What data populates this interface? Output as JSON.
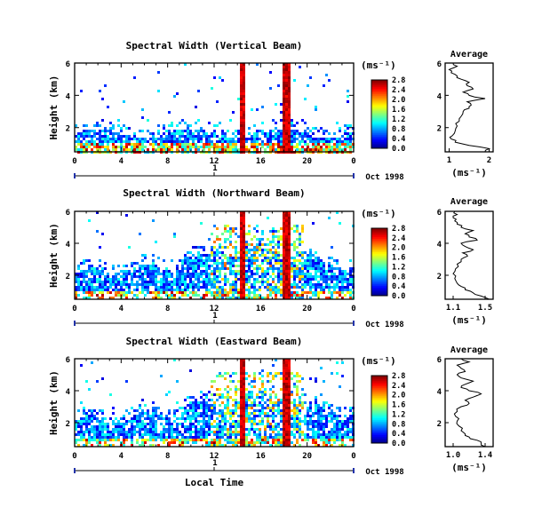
{
  "figure": {
    "date_label": "Oct 1998",
    "day_marker": "1",
    "xlabel": "Local Time",
    "ylabel": "Height (km)",
    "unit_label": "(ms⁻¹)",
    "average_title": "Average"
  },
  "chart_data": [
    {
      "type": "heatmap",
      "title": "Spectral Width (Vertical Beam)",
      "xlabel": "Local Time",
      "ylabel": "Height (km)",
      "x_ticks": [
        "0",
        "4",
        "8",
        "12",
        "16",
        "20",
        "0"
      ],
      "y_ticks": [
        "2",
        "4",
        "6"
      ],
      "colorbar_ticks": [
        "0.0",
        "0.4",
        "0.8",
        "1.2",
        "1.6",
        "2.0",
        "2.4",
        "2.8"
      ],
      "colorbar_unit": "(ms⁻¹)",
      "xlim_hours": [
        0,
        24
      ],
      "ylim_km": [
        0.5,
        6
      ],
      "vmax": 2.8,
      "date": "Oct 1998",
      "profile": {
        "title": "Average",
        "xlabel": "(ms⁻¹)",
        "x_ticks": [
          "1",
          "2"
        ],
        "y_ticks": [
          "2",
          "4",
          "6"
        ],
        "xlim": [
          0.9,
          2.1
        ],
        "heights_km": [
          0.5,
          0.7,
          0.9,
          1.1,
          1.3,
          1.5,
          1.8,
          2.1,
          2.4,
          2.7,
          3.0,
          3.2,
          3.4,
          3.6,
          3.8,
          4.0,
          4.2,
          4.4,
          4.6,
          4.8,
          5.0,
          5.2,
          5.4,
          5.6,
          5.8,
          6.0
        ],
        "values": [
          1.9,
          2.0,
          1.5,
          1.15,
          1.05,
          1.08,
          1.15,
          1.2,
          1.25,
          1.3,
          1.35,
          1.5,
          1.55,
          1.45,
          1.9,
          1.5,
          1.35,
          1.6,
          1.45,
          1.5,
          1.3,
          1.2,
          1.05,
          1.0,
          1.2,
          1.1
        ]
      }
    },
    {
      "type": "heatmap",
      "title": "Spectral Width (Northward Beam)",
      "xlabel": "Local Time",
      "ylabel": "Height (km)",
      "x_ticks": [
        "0",
        "4",
        "8",
        "12",
        "16",
        "20",
        "0"
      ],
      "y_ticks": [
        "2",
        "4",
        "6"
      ],
      "colorbar_ticks": [
        "0.0",
        "0.4",
        "0.8",
        "1.2",
        "1.6",
        "2.0",
        "2.4",
        "2.8"
      ],
      "colorbar_unit": "(ms⁻¹)",
      "xlim_hours": [
        0,
        24
      ],
      "ylim_km": [
        0.5,
        6
      ],
      "vmax": 2.8,
      "date": "Oct 1998",
      "profile": {
        "title": "Average",
        "xlabel": "(ms⁻¹)",
        "x_ticks": [
          "1.1",
          "1.5"
        ],
        "y_ticks": [
          "2",
          "4",
          "6"
        ],
        "xlim": [
          1.0,
          1.6
        ],
        "heights_km": [
          0.5,
          0.7,
          0.9,
          1.1,
          1.3,
          1.5,
          1.8,
          2.1,
          2.4,
          2.7,
          3.0,
          3.2,
          3.4,
          3.6,
          3.8,
          4.0,
          4.2,
          4.4,
          4.6,
          4.8,
          5.0,
          5.2,
          5.4,
          5.6,
          5.8,
          6.0
        ],
        "values": [
          1.55,
          1.45,
          1.35,
          1.25,
          1.2,
          1.15,
          1.12,
          1.1,
          1.13,
          1.15,
          1.2,
          1.28,
          1.22,
          1.35,
          1.25,
          1.2,
          1.4,
          1.3,
          1.25,
          1.35,
          1.2,
          1.15,
          1.12,
          1.1,
          1.15,
          1.12
        ]
      }
    },
    {
      "type": "heatmap",
      "title": "Spectral Width (Eastward Beam)",
      "xlabel": "Local Time",
      "ylabel": "Height (km)",
      "x_ticks": [
        "0",
        "4",
        "8",
        "12",
        "16",
        "20",
        "0"
      ],
      "y_ticks": [
        "2",
        "4",
        "6"
      ],
      "colorbar_ticks": [
        "0.0",
        "0.4",
        "0.8",
        "1.2",
        "1.6",
        "2.0",
        "2.4",
        "2.8"
      ],
      "colorbar_unit": "(ms⁻¹)",
      "xlim_hours": [
        0,
        24
      ],
      "ylim_km": [
        0.5,
        6
      ],
      "vmax": 2.8,
      "date": "Oct 1998",
      "profile": {
        "title": "Average",
        "xlabel": "(ms⁻¹)",
        "x_ticks": [
          "1.0",
          "1.4"
        ],
        "y_ticks": [
          "2",
          "4",
          "6"
        ],
        "xlim": [
          0.9,
          1.5
        ],
        "heights_km": [
          0.5,
          0.7,
          0.9,
          1.1,
          1.3,
          1.5,
          1.8,
          2.1,
          2.4,
          2.7,
          3.0,
          3.2,
          3.4,
          3.6,
          3.8,
          4.0,
          4.2,
          4.4,
          4.6,
          4.8,
          5.0,
          5.2,
          5.4,
          5.6,
          5.8,
          6.0
        ],
        "values": [
          1.4,
          1.35,
          1.3,
          1.2,
          1.15,
          1.1,
          1.07,
          1.05,
          1.03,
          1.05,
          1.1,
          1.2,
          1.15,
          1.25,
          1.35,
          1.2,
          1.1,
          1.15,
          1.25,
          1.1,
          1.05,
          1.15,
          1.1,
          1.05,
          1.2,
          1.1
        ]
      }
    }
  ]
}
